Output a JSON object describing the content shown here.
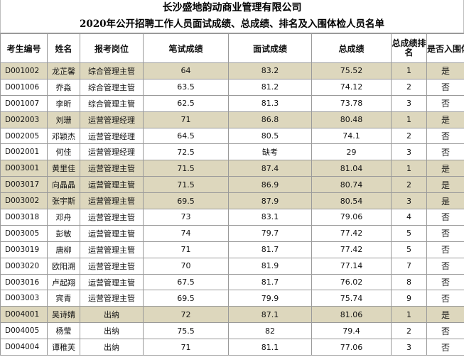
{
  "title": "长沙盛地韵动商业管理有限公司",
  "subtitle": "2020年公开招聘工作人员面试成绩、总成绩、排名及入围体检人员名单",
  "colors": {
    "highlight_row": "#ddd7bd",
    "border": "#9a9a9a"
  },
  "headers": {
    "exam_id": "考生编号",
    "name": "姓名",
    "position": "报考岗位",
    "written": "笔试成绩",
    "interview": "面试成绩",
    "total": "总成绩",
    "rank": "总成绩排名",
    "physical": "是否入围体检"
  },
  "rows": [
    {
      "exam_id": "D001002",
      "name": "龙芷馨",
      "position": "综合管理主管",
      "written": "64",
      "interview": "83.2",
      "total": "75.52",
      "rank": "1",
      "physical": "是"
    },
    {
      "exam_id": "D001006",
      "name": "乔淼",
      "position": "综合管理主管",
      "written": "63.5",
      "interview": "81.2",
      "total": "74.12",
      "rank": "2",
      "physical": "否"
    },
    {
      "exam_id": "D001007",
      "name": "李昕",
      "position": "综合管理主管",
      "written": "62.5",
      "interview": "81.3",
      "total": "73.78",
      "rank": "3",
      "physical": "否"
    },
    {
      "exam_id": "D002003",
      "name": "刘珊",
      "position": "运营管理经理",
      "written": "71",
      "interview": "86.8",
      "total": "80.48",
      "rank": "1",
      "physical": "是"
    },
    {
      "exam_id": "D002005",
      "name": "邓颖杰",
      "position": "运营管理经理",
      "written": "64.5",
      "interview": "80.5",
      "total": "74.1",
      "rank": "2",
      "physical": "否"
    },
    {
      "exam_id": "D002001",
      "name": "何佳",
      "position": "运营管理经理",
      "written": "72.5",
      "interview": "缺考",
      "total": "29",
      "rank": "3",
      "physical": "否"
    },
    {
      "exam_id": "D003001",
      "name": "黄里佳",
      "position": "运营管理主管",
      "written": "71.5",
      "interview": "87.4",
      "total": "81.04",
      "rank": "1",
      "physical": "是"
    },
    {
      "exam_id": "D003017",
      "name": "向晶晶",
      "position": "运营管理主管",
      "written": "71.5",
      "interview": "86.9",
      "total": "80.74",
      "rank": "2",
      "physical": "是"
    },
    {
      "exam_id": "D003002",
      "name": "张宇斯",
      "position": "运营管理主管",
      "written": "69.5",
      "interview": "87.9",
      "total": "80.54",
      "rank": "3",
      "physical": "是"
    },
    {
      "exam_id": "D003018",
      "name": "邓舟",
      "position": "运营管理主管",
      "written": "73",
      "interview": "83.1",
      "total": "79.06",
      "rank": "4",
      "physical": "否"
    },
    {
      "exam_id": "D003005",
      "name": "彭敏",
      "position": "运营管理主管",
      "written": "74",
      "interview": "79.7",
      "total": "77.42",
      "rank": "5",
      "physical": "否"
    },
    {
      "exam_id": "D003019",
      "name": "唐柳",
      "position": "运营管理主管",
      "written": "71",
      "interview": "81.7",
      "total": "77.42",
      "rank": "5",
      "physical": "否"
    },
    {
      "exam_id": "D003020",
      "name": "欧阳溯",
      "position": "运营管理主管",
      "written": "70",
      "interview": "81.9",
      "total": "77.14",
      "rank": "7",
      "physical": "否"
    },
    {
      "exam_id": "D003016",
      "name": "卢起翔",
      "position": "运营管理主管",
      "written": "67.5",
      "interview": "81.7",
      "total": "76.02",
      "rank": "8",
      "physical": "否"
    },
    {
      "exam_id": "D003003",
      "name": "宾青",
      "position": "运营管理主管",
      "written": "69.5",
      "interview": "79.9",
      "total": "75.74",
      "rank": "9",
      "physical": "否"
    },
    {
      "exam_id": "D004001",
      "name": "吴诗婧",
      "position": "出纳",
      "written": "72",
      "interview": "87.1",
      "total": "81.06",
      "rank": "1",
      "physical": "是"
    },
    {
      "exam_id": "D004005",
      "name": "杨莹",
      "position": "出纳",
      "written": "75.5",
      "interview": "82",
      "total": "79.4",
      "rank": "2",
      "physical": "否"
    },
    {
      "exam_id": "D004004",
      "name": "谭稚芙",
      "position": "出纳",
      "written": "71",
      "interview": "81.1",
      "total": "77.06",
      "rank": "3",
      "physical": "否"
    }
  ]
}
